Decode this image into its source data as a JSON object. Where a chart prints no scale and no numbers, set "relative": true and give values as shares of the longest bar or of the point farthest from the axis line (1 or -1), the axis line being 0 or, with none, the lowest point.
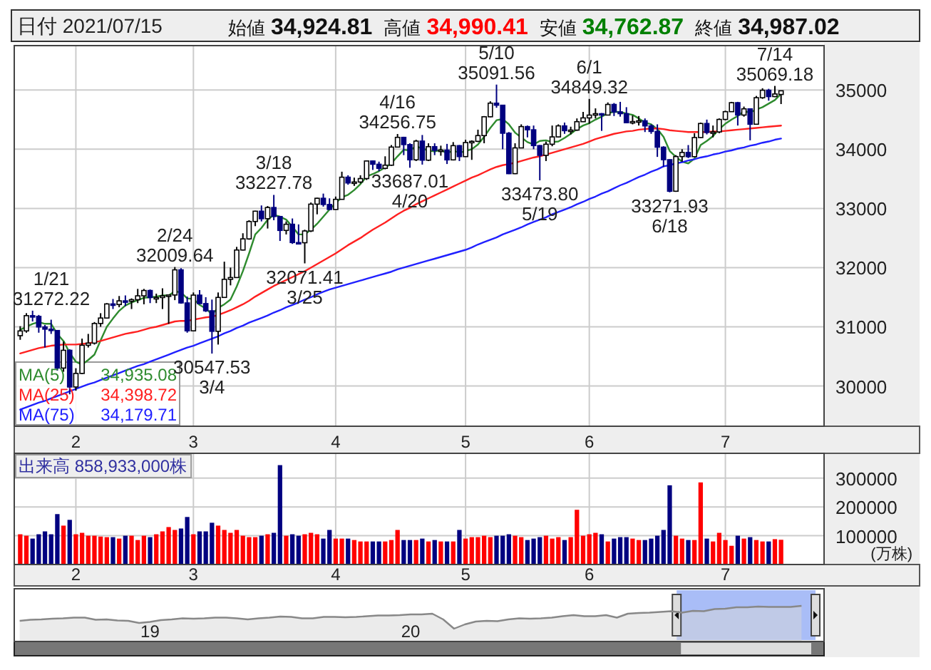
{
  "chart_data": [
    {
      "type": "candlestick",
      "title": "日付 2021/07/15",
      "categories": [
        null,
        null,
        null,
        null,
        null,
        null,
        null,
        null,
        null,
        "2",
        null,
        null,
        null,
        null,
        null,
        null,
        null,
        null,
        null,
        null,
        null,
        null,
        null,
        null,
        null,
        null,
        null,
        null,
        "3",
        null,
        null,
        null,
        null,
        null,
        null,
        null,
        null,
        null,
        null,
        null,
        null,
        null,
        null,
        null,
        null,
        null,
        null,
        null,
        null,
        null,
        null,
        "4",
        null,
        null,
        null,
        null,
        null,
        null,
        null,
        null,
        null,
        null,
        null,
        null,
        null,
        null,
        null,
        null,
        null,
        null,
        null,
        null,
        "5",
        null,
        null,
        null,
        null,
        null,
        null,
        null,
        null,
        null,
        null,
        null,
        null,
        null,
        null,
        null,
        null,
        null,
        null,
        null,
        "6",
        null,
        null,
        null,
        null,
        null,
        null,
        null,
        null,
        null,
        null,
        null,
        null,
        null,
        null,
        null,
        null,
        null,
        null,
        null,
        null,
        null,
        "7",
        null,
        null,
        null,
        null,
        null,
        null,
        null,
        null,
        null
      ],
      "ohlc": [
        [
          30850,
          31010,
          30780,
          30930
        ],
        [
          30930,
          31230,
          30900,
          31188
        ],
        [
          31188,
          31272.22,
          31090,
          31176
        ],
        [
          31176,
          31200,
          30900,
          30997
        ],
        [
          30997,
          31030,
          30650,
          30960
        ],
        [
          30960,
          31120,
          30880,
          30937
        ],
        [
          30937,
          30940,
          30260,
          30303
        ],
        [
          30303,
          30750,
          30240,
          30603
        ],
        [
          30603,
          30620,
          29860,
          29983
        ],
        [
          29983,
          30300,
          29920,
          30212
        ],
        [
          30212,
          30800,
          30200,
          30688
        ],
        [
          30688,
          30880,
          30650,
          30724
        ],
        [
          30724,
          31080,
          30700,
          31056
        ],
        [
          31056,
          31230,
          31000,
          31148
        ],
        [
          31148,
          31400,
          31140,
          31386
        ],
        [
          31386,
          31470,
          31300,
          31376
        ],
        [
          31376,
          31520,
          31330,
          31438
        ],
        [
          31438,
          31530,
          31350,
          31431
        ],
        [
          31431,
          31480,
          31300,
          31458
        ],
        [
          31458,
          31640,
          31400,
          31523
        ],
        [
          31523,
          31640,
          31380,
          31613
        ],
        [
          31613,
          31630,
          31400,
          31494
        ],
        [
          31494,
          31560,
          31400,
          31494
        ],
        [
          31494,
          31650,
          31300,
          31522
        ],
        [
          31522,
          31540,
          31050,
          31537
        ],
        [
          31537,
          32009.64,
          31450,
          31962
        ],
        [
          31962,
          31990,
          31390,
          31403
        ],
        [
          31403,
          31510,
          30900,
          30932
        ],
        [
          30932,
          31580,
          30930,
          31535
        ],
        [
          31535,
          31620,
          31380,
          31392
        ],
        [
          31392,
          31500,
          31250,
          31270
        ],
        [
          31270,
          31460,
          30547.53,
          30924
        ],
        [
          30924,
          31580,
          30700,
          31496
        ],
        [
          31496,
          32100,
          31490,
          31802
        ],
        [
          31802,
          32000,
          31700,
          31832
        ],
        [
          31832,
          32350,
          31830,
          32297
        ],
        [
          32297,
          32580,
          32290,
          32485
        ],
        [
          32485,
          32800,
          32470,
          32779
        ],
        [
          32779,
          32960,
          32700,
          32953
        ],
        [
          32953,
          33050,
          32780,
          32826
        ],
        [
          32826,
          33040,
          32660,
          33015
        ],
        [
          33015,
          33227.78,
          32800,
          32863
        ],
        [
          32863,
          32870,
          32450,
          32628
        ],
        [
          32628,
          32780,
          32560,
          32732
        ],
        [
          32732,
          32830,
          32400,
          32423
        ],
        [
          32423,
          32730,
          32400,
          32420
        ],
        [
          32420,
          32640,
          32071.41,
          32619
        ],
        [
          32619,
          33100,
          32600,
          33072
        ],
        [
          33072,
          33180,
          32900,
          33171
        ],
        [
          33171,
          33250,
          33030,
          33066
        ],
        [
          33066,
          33170,
          32980,
          32982
        ],
        [
          32982,
          33200,
          32980,
          33153
        ],
        [
          33153,
          33620,
          33150,
          33527
        ],
        [
          33527,
          33560,
          33400,
          33430
        ],
        [
          33430,
          33520,
          33380,
          33446
        ],
        [
          33446,
          33560,
          33420,
          33504
        ],
        [
          33504,
          33810,
          33480,
          33801
        ],
        [
          33801,
          33810,
          33650,
          33746
        ],
        [
          33746,
          33790,
          33630,
          33677
        ],
        [
          33677,
          33880,
          33660,
          33730
        ],
        [
          33730,
          34070,
          33720,
          34036
        ],
        [
          34036,
          34256.75,
          34030,
          34200
        ],
        [
          34200,
          34210,
          33900,
          34078
        ],
        [
          34078,
          34100,
          33687.01,
          33821
        ],
        [
          33821,
          34160,
          33800,
          34137
        ],
        [
          34137,
          34240,
          33740,
          33815
        ],
        [
          33815,
          34100,
          33800,
          34043
        ],
        [
          34043,
          34100,
          33900,
          33981
        ],
        [
          33981,
          34060,
          33890,
          33985
        ],
        [
          33985,
          34090,
          33750,
          33820
        ],
        [
          33820,
          34120,
          33810,
          34060
        ],
        [
          34060,
          34070,
          33800,
          33875
        ],
        [
          33875,
          34160,
          33870,
          34113
        ],
        [
          34113,
          34150,
          33820,
          34133
        ],
        [
          34133,
          34330,
          34120,
          34230
        ],
        [
          34230,
          34560,
          34100,
          34548
        ],
        [
          34548,
          34810,
          34540,
          34778
        ],
        [
          34778,
          35091.56,
          34700,
          34743
        ],
        [
          34743,
          34750,
          34000,
          34270
        ],
        [
          34270,
          34290,
          33580,
          33587
        ],
        [
          33587,
          34100,
          33580,
          34022
        ],
        [
          34022,
          34420,
          34020,
          34382
        ],
        [
          34382,
          34400,
          34200,
          34328
        ],
        [
          34328,
          34400,
          34000,
          34061
        ],
        [
          34061,
          34070,
          33473.8,
          33896
        ],
        [
          33896,
          34130,
          33800,
          34084
        ],
        [
          34084,
          34400,
          34050,
          34208
        ],
        [
          34208,
          34420,
          34200,
          34394
        ],
        [
          34394,
          34450,
          34260,
          34313
        ],
        [
          34313,
          34380,
          34250,
          34323
        ],
        [
          34323,
          34520,
          34310,
          34465
        ],
        [
          34465,
          34630,
          34460,
          34529
        ],
        [
          34529,
          34849.32,
          34430,
          34576
        ],
        [
          34576,
          34690,
          34520,
          34600
        ],
        [
          34600,
          34610,
          34310,
          34577
        ],
        [
          34577,
          34790,
          34570,
          34756
        ],
        [
          34756,
          34780,
          34560,
          34630
        ],
        [
          34630,
          34800,
          34550,
          34600
        ],
        [
          34600,
          34710,
          34440,
          34448
        ],
        [
          34448,
          34570,
          34420,
          34467
        ],
        [
          34467,
          34560,
          34400,
          34480
        ],
        [
          34480,
          34520,
          34290,
          34394
        ],
        [
          34394,
          34420,
          34260,
          34300
        ],
        [
          34300,
          34420,
          33870,
          34034
        ],
        [
          34034,
          34050,
          33700,
          33823
        ],
        [
          33823,
          33830,
          33271.93,
          33290
        ],
        [
          33290,
          33900,
          33280,
          33876
        ],
        [
          33876,
          34000,
          33790,
          33945
        ],
        [
          33945,
          34070,
          33850,
          33874
        ],
        [
          33874,
          34270,
          33870,
          34197
        ],
        [
          34197,
          34450,
          34190,
          34434
        ],
        [
          34434,
          34500,
          34250,
          34283
        ],
        [
          34283,
          34400,
          34200,
          34292
        ],
        [
          34292,
          34520,
          34270,
          34503
        ],
        [
          34503,
          34650,
          34490,
          34634
        ],
        [
          34634,
          34800,
          34630,
          34786
        ],
        [
          34786,
          34800,
          34400,
          34577
        ],
        [
          34577,
          34720,
          34550,
          34682
        ],
        [
          34682,
          34690,
          34150,
          34422
        ],
        [
          34422,
          34900,
          34420,
          34870
        ],
        [
          34870,
          35030,
          34850,
          34996
        ],
        [
          34996,
          35020,
          34820,
          34889
        ],
        [
          34889,
          35069.18,
          34880,
          34933
        ],
        [
          34924.81,
          34990.41,
          34762.87,
          34987.02
        ]
      ],
      "series": [
        {
          "name": "MA(5)",
          "type": "line",
          "color": "#2e8b2e",
          "values": [
            30950,
            31000,
            31050,
            31080,
            31050,
            31050,
            30880,
            30760,
            30560,
            30410,
            30360,
            30440,
            30530,
            30770,
            31000,
            31140,
            31270,
            31360,
            31410,
            31450,
            31490,
            31500,
            31510,
            31530,
            31530,
            31600,
            31580,
            31480,
            31470,
            31370,
            31310,
            31210,
            31320,
            31380,
            31460,
            31680,
            31940,
            32240,
            32560,
            32670,
            32810,
            32890,
            32860,
            32810,
            32690,
            32560,
            32560,
            32640,
            32740,
            32860,
            32980,
            33090,
            33190,
            33230,
            33310,
            33410,
            33540,
            33580,
            33630,
            33690,
            33760,
            33880,
            33990,
            33980,
            34050,
            34010,
            33980,
            33960,
            33990,
            33930,
            33980,
            33940,
            33970,
            34000,
            34080,
            34210,
            34360,
            34490,
            34510,
            34420,
            34280,
            34200,
            34120,
            34080,
            34140,
            34150,
            34120,
            34130,
            34190,
            34260,
            34340,
            34400,
            34440,
            34500,
            34550,
            34610,
            34630,
            34630,
            34600,
            34580,
            34520,
            34450,
            34420,
            34340,
            34210,
            33970,
            33870,
            33790,
            33760,
            33840,
            34070,
            34140,
            34220,
            34340,
            34430,
            34500,
            34560,
            34640,
            34620,
            34670,
            34710,
            34770,
            34830,
            34935.08
          ]
        },
        {
          "name": "MA(25)",
          "type": "line",
          "color": "#ff2020",
          "values": [
            30550,
            30580,
            30610,
            30640,
            30660,
            30680,
            30690,
            30700,
            30700,
            30700,
            30710,
            30720,
            30740,
            30760,
            30790,
            30820,
            30850,
            30880,
            30900,
            30920,
            30950,
            30980,
            31000,
            31030,
            31060,
            31090,
            31100,
            31100,
            31120,
            31140,
            31160,
            31170,
            31200,
            31240,
            31280,
            31330,
            31380,
            31440,
            31510,
            31570,
            31630,
            31690,
            31740,
            31790,
            31840,
            31890,
            31940,
            32000,
            32060,
            32120,
            32180,
            32240,
            32310,
            32380,
            32440,
            32500,
            32570,
            32640,
            32700,
            32760,
            32830,
            32900,
            32960,
            33010,
            33070,
            33120,
            33170,
            33220,
            33270,
            33320,
            33370,
            33420,
            33470,
            33520,
            33560,
            33610,
            33660,
            33700,
            33730,
            33750,
            33770,
            33800,
            33830,
            33860,
            33880,
            33910,
            33940,
            33970,
            34000,
            34030,
            34060,
            34090,
            34130,
            34170,
            34200,
            34230,
            34260,
            34280,
            34300,
            34310,
            34330,
            34340,
            34350,
            34350,
            34340,
            34320,
            34310,
            34300,
            34290,
            34290,
            34290,
            34290,
            34300,
            34300,
            34310,
            34320,
            34330,
            34340,
            34350,
            34360,
            34370,
            34380,
            34390,
            34398.72
          ]
        },
        {
          "name": "MA(75)",
          "type": "line",
          "color": "#2020ff",
          "values": [
            29600,
            29640,
            29680,
            29720,
            29750,
            29790,
            29830,
            29870,
            29910,
            29950,
            29990,
            30030,
            30060,
            30100,
            30140,
            30180,
            30220,
            30260,
            30300,
            30340,
            30370,
            30410,
            30450,
            30490,
            30530,
            30570,
            30610,
            30650,
            30680,
            30720,
            30760,
            30800,
            30840,
            30890,
            30930,
            30980,
            31020,
            31070,
            31110,
            31150,
            31190,
            31240,
            31280,
            31330,
            31370,
            31410,
            31460,
            31500,
            31550,
            31590,
            31630,
            31660,
            31690,
            31720,
            31750,
            31780,
            31810,
            31840,
            31870,
            31900,
            31930,
            31970,
            32000,
            32030,
            32060,
            32090,
            32120,
            32150,
            32180,
            32210,
            32240,
            32270,
            32300,
            32340,
            32390,
            32430,
            32470,
            32510,
            32560,
            32600,
            32640,
            32680,
            32730,
            32770,
            32810,
            32850,
            32900,
            32940,
            32980,
            33020,
            33070,
            33110,
            33160,
            33200,
            33250,
            33290,
            33340,
            33390,
            33430,
            33480,
            33530,
            33570,
            33620,
            33660,
            33710,
            33730,
            33760,
            33780,
            33810,
            33830,
            33860,
            33880,
            33910,
            33930,
            33960,
            33980,
            34010,
            34030,
            34060,
            34080,
            34110,
            34130,
            34160,
            34179.71
          ]
        }
      ],
      "ylim": [
        29320,
        35750
      ],
      "yticks": [
        30000,
        31000,
        32000,
        33000,
        34000,
        35000
      ],
      "grid": true,
      "legend": "bottom left",
      "annotations": [
        "始値",
        "34,924.81",
        "高値",
        "34,990.41",
        "安値",
        "34,762.87",
        "終値",
        "34,987.02",
        "34,935.08",
        "34,398.72",
        "34,179.71",
        "1/21\n31272.22",
        {
          "text": "2/24\n32009.64",
          "y": 32009.64
        },
        {
          "text": "30547.53\n3/4",
          "y": 30547.53
        },
        {
          "text": "3/18\n33227.78",
          "y": 33227.78
        },
        {
          "text": "32071.41\n3/25",
          "y": 32071.41
        },
        {
          "text": "4/16\n34256.75",
          "y": 34256.75
        },
        {
          "text": "33687.01\n4/20",
          "y": 33687.01
        },
        {
          "text": "5/10\n35091.56",
          "y": 35091.56
        },
        {
          "text": "33473.80\n5/19",
          "y": 33473.8
        },
        {
          "text": "6/1\n34849.32",
          "y": 34849.32
        },
        {
          "text": "33271.93\n6/18",
          "y": 33271.93
        },
        {
          "text": "7/14\n35069.18",
          "y": 35069.18
        }
      ]
    },
    {
      "type": "bar",
      "title": "出来高 858,933,000株",
      "ylabel": "(万株)",
      "categories": [
        null,
        null,
        null,
        null,
        null,
        null,
        null,
        null,
        null,
        "2",
        null,
        null,
        null,
        null,
        null,
        null,
        null,
        null,
        null,
        null,
        null,
        null,
        null,
        null,
        null,
        null,
        null,
        null,
        "3",
        null,
        null,
        null,
        null,
        null,
        null,
        null,
        null,
        null,
        null,
        null,
        null,
        null,
        null,
        null,
        null,
        null,
        null,
        null,
        null,
        null,
        null,
        "4",
        null,
        null,
        null,
        null,
        null,
        null,
        null,
        null,
        null,
        null,
        null,
        null,
        null,
        null,
        null,
        null,
        null,
        null,
        null,
        null,
        "5",
        null,
        null,
        null,
        null,
        null,
        null,
        null,
        null,
        null,
        null,
        null,
        null,
        null,
        null,
        null,
        null,
        null,
        null,
        null,
        "6",
        null,
        null,
        null,
        null,
        null,
        null,
        null,
        null,
        null,
        null,
        null,
        null,
        null,
        null,
        null,
        null,
        null,
        null,
        null,
        null,
        null,
        "7",
        null,
        null,
        null,
        null,
        null,
        null,
        null,
        null,
        null
      ],
      "values": [
        105000,
        100000,
        90000,
        105000,
        115000,
        105000,
        175000,
        135000,
        155000,
        105000,
        110000,
        100000,
        100000,
        97000,
        95000,
        95000,
        90000,
        100000,
        100000,
        85000,
        100000,
        95000,
        105000,
        115000,
        130000,
        120000,
        125000,
        165000,
        105000,
        115000,
        115000,
        145000,
        135000,
        120000,
        110000,
        120000,
        100000,
        95000,
        95000,
        100000,
        105000,
        110000,
        345000,
        100000,
        105000,
        100000,
        105000,
        110000,
        105000,
        90000,
        120000,
        90000,
        90000,
        90000,
        85000,
        80000,
        80000,
        80000,
        80000,
        80000,
        85000,
        120000,
        85000,
        85000,
        85000,
        90000,
        80000,
        85000,
        80000,
        80000,
        80000,
        120000,
        90000,
        95000,
        95000,
        100000,
        95000,
        100000,
        100000,
        105000,
        100000,
        95000,
        85000,
        90000,
        95000,
        100000,
        90000,
        95000,
        85000,
        95000,
        190000,
        100000,
        105000,
        110000,
        105000,
        80000,
        90000,
        95000,
        95000,
        90000,
        85000,
        85000,
        90000,
        100000,
        120000,
        275000,
        100000,
        90000,
        85000,
        85000,
        285000,
        90000,
        80000,
        110000,
        85000,
        65000,
        100000,
        90000,
        95000,
        85000,
        80000,
        80000,
        88000,
        85893.3
      ],
      "colors": [
        "#ff0000",
        "#ff0000",
        "#000080",
        "#000080",
        "#000080",
        "#000080",
        "#000080",
        "#ff0000",
        "#000080",
        "#ff0000",
        "#ff0000",
        "#ff0000",
        "#ff0000",
        "#ff0000",
        "#ff0000",
        "#000080",
        "#ff0000",
        "#000080",
        "#ff0000",
        "#ff0000",
        "#ff0000",
        "#000080",
        "#ff0000",
        "#ff0000",
        "#ff0000",
        "#ff0000",
        "#000080",
        "#000080",
        "#ff0000",
        "#000080",
        "#000080",
        "#000080",
        "#ff0000",
        "#ff0000",
        "#ff0000",
        "#ff0000",
        "#ff0000",
        "#ff0000",
        "#ff0000",
        "#000080",
        "#ff0000",
        "#000080",
        "#000080",
        "#ff0000",
        "#000080",
        "#000080",
        "#ff0000",
        "#ff0000",
        "#ff0000",
        "#000080",
        "#000080",
        "#ff0000",
        "#ff0000",
        "#000080",
        "#ff0000",
        "#ff0000",
        "#ff0000",
        "#000080",
        "#000080",
        "#ff0000",
        "#ff0000",
        "#ff0000",
        "#000080",
        "#000080",
        "#ff0000",
        "#000080",
        "#ff0000",
        "#000080",
        "#ff0000",
        "#000080",
        "#ff0000",
        "#000080",
        "#ff0000",
        "#ff0000",
        "#ff0000",
        "#ff0000",
        "#ff0000",
        "#000080",
        "#000080",
        "#000080",
        "#ff0000",
        "#ff0000",
        "#000080",
        "#000080",
        "#000080",
        "#ff0000",
        "#ff0000",
        "#ff0000",
        "#000080",
        "#ff0000",
        "#ff0000",
        "#ff0000",
        "#ff0000",
        "#ff0000",
        "#000080",
        "#ff0000",
        "#000080",
        "#000080",
        "#000080",
        "#ff0000",
        "#ff0000",
        "#000080",
        "#000080",
        "#000080",
        "#000080",
        "#000080",
        "#ff0000",
        "#ff0000",
        "#000080",
        "#ff0000",
        "#ff0000",
        "#000080",
        "#ff0000",
        "#ff0000",
        "#ff0000",
        "#ff0000",
        "#000080",
        "#ff0000",
        "#000080",
        "#ff0000",
        "#ff0000",
        "#000080",
        "#ff0000",
        "#ff0000"
      ],
      "ylim": [
        0,
        386000
      ],
      "yticks": [
        100000,
        200000,
        300000
      ],
      "grid": true
    },
    {
      "type": "area",
      "relative": true,
      "tick_labels": "x",
      "color": "#888888",
      "categories": [
        null,
        null,
        null,
        null,
        null,
        null,
        null,
        null,
        null,
        null,
        null,
        null,
        "19",
        null,
        null,
        null,
        null,
        null,
        null,
        null,
        null,
        null,
        null,
        null,
        null,
        null,
        null,
        null,
        null,
        null,
        null,
        null,
        null,
        null,
        null,
        null,
        "20",
        null,
        null,
        null,
        null,
        null,
        null,
        null,
        null,
        null,
        null,
        null,
        null,
        null,
        null,
        null,
        null,
        null,
        null,
        null,
        null,
        null,
        null,
        null,
        null,
        null,
        null,
        null,
        null,
        null,
        null,
        null,
        null,
        null,
        null,
        null,
        null
      ],
      "values": [
        0.58,
        0.61,
        0.62,
        0.64,
        0.65,
        0.67,
        0.67,
        0.61,
        0.62,
        0.59,
        0.58,
        0.52,
        0.55,
        0.6,
        0.62,
        0.65,
        0.64,
        0.65,
        0.67,
        0.67,
        0.65,
        0.62,
        0.65,
        0.67,
        0.7,
        0.69,
        0.65,
        0.65,
        0.69,
        0.69,
        0.68,
        0.69,
        0.71,
        0.73,
        0.73,
        0.74,
        0.76,
        0.76,
        0.78,
        0.62,
        0.36,
        0.48,
        0.56,
        0.58,
        0.57,
        0.62,
        0.65,
        0.64,
        0.65,
        0.67,
        0.71,
        0.74,
        0.71,
        0.71,
        0.74,
        0.67,
        0.78,
        0.8,
        0.81,
        0.83,
        0.85,
        0.81,
        0.86,
        0.85,
        0.91,
        0.92,
        0.96,
        0.96,
        0.98,
        0.97,
        0.97,
        0.97,
        1
      ]
    }
  ]
}
